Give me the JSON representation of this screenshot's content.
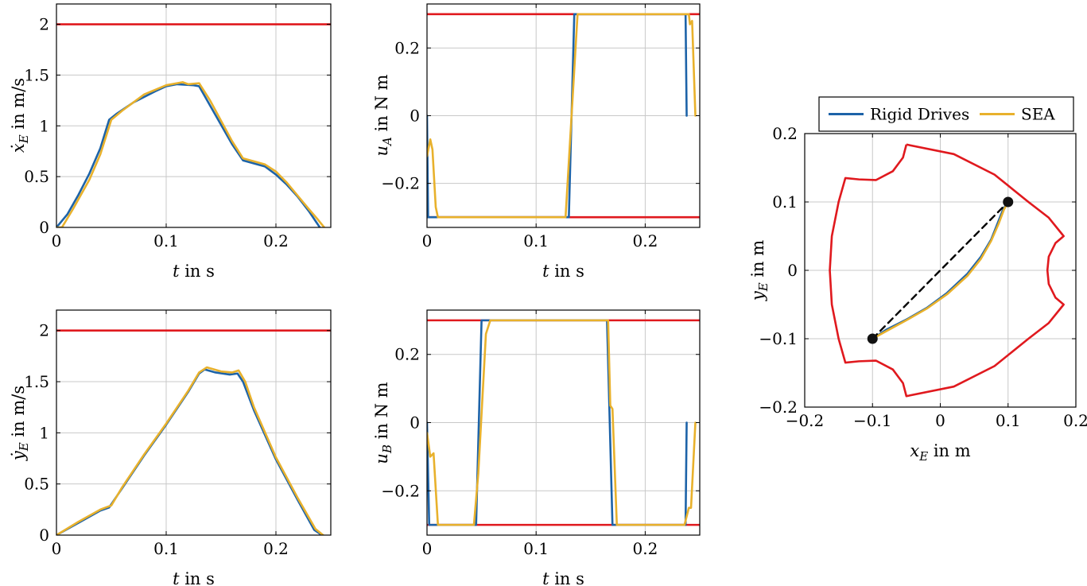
{
  "chart_data": [
    {
      "id": "vx",
      "type": "line",
      "xlabel_var": "t",
      "xlabel_unit": " in s",
      "ylabel_var": "ẋ",
      "ylabel_sub": "E",
      "ylabel_unit": " in m/s",
      "xlim": [
        0,
        0.25
      ],
      "ylim": [
        0,
        2.2
      ],
      "xticks": [
        0,
        0.1,
        0.2
      ],
      "xticklabels": [
        "0",
        "0.1",
        "0.2"
      ],
      "yticks": [
        0,
        0.5,
        1,
        1.5,
        2
      ],
      "yticklabels": [
        "0",
        "0.5",
        "1",
        "1.5",
        "2"
      ],
      "grid": true,
      "series": [
        {
          "color": "#e0191e",
          "points": [
            [
              0,
              2
            ],
            [
              0.25,
              2
            ]
          ]
        },
        {
          "color": "#1d63a8",
          "points": [
            [
              0,
              0
            ],
            [
              0.01,
              0.13
            ],
            [
              0.02,
              0.32
            ],
            [
              0.03,
              0.53
            ],
            [
              0.04,
              0.78
            ],
            [
              0.048,
              1.06
            ],
            [
              0.055,
              1.12
            ],
            [
              0.07,
              1.23
            ],
            [
              0.09,
              1.34
            ],
            [
              0.1,
              1.39
            ],
            [
              0.11,
              1.41
            ],
            [
              0.125,
              1.4
            ],
            [
              0.13,
              1.39
            ],
            [
              0.14,
              1.2
            ],
            [
              0.16,
              0.82
            ],
            [
              0.17,
              0.66
            ],
            [
              0.19,
              0.6
            ],
            [
              0.2,
              0.52
            ],
            [
              0.21,
              0.42
            ],
            [
              0.22,
              0.3
            ],
            [
              0.23,
              0.16
            ],
            [
              0.24,
              0
            ]
          ]
        },
        {
          "color": "#e8b12c",
          "points": [
            [
              0,
              0
            ],
            [
              0.005,
              0
            ],
            [
              0.015,
              0.18
            ],
            [
              0.03,
              0.47
            ],
            [
              0.04,
              0.72
            ],
            [
              0.05,
              1.06
            ],
            [
              0.06,
              1.15
            ],
            [
              0.08,
              1.31
            ],
            [
              0.1,
              1.4
            ],
            [
              0.115,
              1.43
            ],
            [
              0.12,
              1.41
            ],
            [
              0.13,
              1.42
            ],
            [
              0.14,
              1.25
            ],
            [
              0.16,
              0.85
            ],
            [
              0.17,
              0.68
            ],
            [
              0.19,
              0.62
            ],
            [
              0.2,
              0.55
            ],
            [
              0.21,
              0.44
            ],
            [
              0.22,
              0.31
            ],
            [
              0.23,
              0.18
            ],
            [
              0.238,
              0.08
            ],
            [
              0.244,
              0
            ]
          ]
        }
      ]
    },
    {
      "id": "uA",
      "type": "line",
      "xlabel_var": "t",
      "xlabel_unit": " in s",
      "ylabel_var": "u",
      "ylabel_sub": "A",
      "ylabel_unit": " in N m",
      "xlim": [
        0,
        0.25
      ],
      "ylim": [
        -0.33,
        0.33
      ],
      "xticks": [
        0,
        0.1,
        0.2
      ],
      "xticklabels": [
        "0",
        "0.1",
        "0.2"
      ],
      "yticks": [
        -0.2,
        0,
        0.2
      ],
      "yticklabels": [
        "−0.2",
        "0",
        "0.2"
      ],
      "grid": true,
      "series": [
        {
          "color": "#e0191e",
          "points": [
            [
              0,
              0.3
            ],
            [
              0.25,
              0.3
            ]
          ]
        },
        {
          "color": "#e0191e",
          "points": [
            [
              0,
              -0.3
            ],
            [
              0.25,
              -0.3
            ]
          ]
        },
        {
          "color": "#1d63a8",
          "points": [
            [
              0,
              0
            ],
            [
              0.001,
              -0.3
            ],
            [
              0.13,
              -0.3
            ],
            [
              0.135,
              0.3
            ],
            [
              0.237,
              0.3
            ],
            [
              0.238,
              0
            ]
          ]
        },
        {
          "color": "#e8b12c",
          "points": [
            [
              0,
              -0.12
            ],
            [
              0.003,
              -0.07
            ],
            [
              0.005,
              -0.1
            ],
            [
              0.008,
              -0.27
            ],
            [
              0.01,
              -0.3
            ],
            [
              0.127,
              -0.3
            ],
            [
              0.138,
              0.3
            ],
            [
              0.24,
              0.3
            ],
            [
              0.241,
              0.27
            ],
            [
              0.243,
              0.28
            ],
            [
              0.246,
              0
            ]
          ]
        }
      ]
    },
    {
      "id": "xy",
      "type": "line",
      "xlabel_var": "x",
      "xlabel_sub": "E",
      "xlabel_unit": " in m",
      "ylabel_var": "y",
      "ylabel_sub": "E",
      "ylabel_unit": " in m",
      "xlim": [
        -0.2,
        0.2
      ],
      "ylim": [
        -0.2,
        0.2
      ],
      "xticks": [
        -0.2,
        -0.1,
        0,
        0.1,
        0.2
      ],
      "xticklabels": [
        "−0.2",
        "−0.1",
        "0",
        "0.1",
        "0.2"
      ],
      "yticks": [
        -0.2,
        -0.1,
        0,
        0.1,
        0.2
      ],
      "yticklabels": [
        "−0.2",
        "−0.1",
        "0",
        "0.1",
        "0.2"
      ],
      "grid": true,
      "legend": "top",
      "series": [
        {
          "name": "Rigid Drives",
          "color": "#1d63a8",
          "points": [
            [
              -0.1,
              -0.1
            ],
            [
              -0.08,
              -0.087
            ],
            [
              -0.05,
              -0.072
            ],
            [
              -0.02,
              -0.055
            ],
            [
              0.01,
              -0.033
            ],
            [
              0.04,
              -0.005
            ],
            [
              0.06,
              0.02
            ],
            [
              0.075,
              0.045
            ],
            [
              0.085,
              0.07
            ],
            [
              0.093,
              0.09
            ],
            [
              0.1,
              0.1
            ]
          ]
        },
        {
          "name": "SEA",
          "color": "#e8b12c",
          "points": [
            [
              -0.1,
              -0.1
            ],
            [
              -0.078,
              -0.088
            ],
            [
              -0.05,
              -0.073
            ],
            [
              -0.02,
              -0.056
            ],
            [
              0.01,
              -0.035
            ],
            [
              0.04,
              -0.008
            ],
            [
              0.06,
              0.017
            ],
            [
              0.075,
              0.043
            ],
            [
              0.086,
              0.068
            ],
            [
              0.094,
              0.089
            ],
            [
              0.1,
              0.1
            ]
          ]
        },
        {
          "color": "#000000",
          "dash": true,
          "points": [
            [
              -0.1,
              -0.1
            ],
            [
              0.1,
              0.1
            ]
          ]
        }
      ],
      "workspace_boundary": {
        "color": "#e0191e",
        "points": [
          [
            -0.05,
            0.184
          ],
          [
            0.02,
            0.17
          ],
          [
            0.08,
            0.14
          ],
          [
            0.13,
            0.1
          ],
          [
            0.16,
            0.077
          ],
          [
            0.182,
            0.05
          ],
          [
            0.17,
            0.04
          ],
          [
            0.16,
            0.02
          ],
          [
            0.158,
            0
          ],
          [
            0.16,
            -0.02
          ],
          [
            0.17,
            -0.04
          ],
          [
            0.182,
            -0.05
          ],
          [
            0.16,
            -0.077
          ],
          [
            0.13,
            -0.1
          ],
          [
            0.08,
            -0.14
          ],
          [
            0.02,
            -0.17
          ],
          [
            -0.05,
            -0.184
          ],
          [
            -0.055,
            -0.165
          ],
          [
            -0.07,
            -0.145
          ],
          [
            -0.095,
            -0.132
          ],
          [
            -0.12,
            -0.133
          ],
          [
            -0.14,
            -0.135
          ],
          [
            -0.15,
            -0.1
          ],
          [
            -0.16,
            -0.05
          ],
          [
            -0.163,
            0
          ],
          [
            -0.16,
            0.05
          ],
          [
            -0.15,
            0.1
          ],
          [
            -0.14,
            0.135
          ],
          [
            -0.12,
            0.133
          ],
          [
            -0.095,
            0.132
          ],
          [
            -0.07,
            0.145
          ],
          [
            -0.055,
            0.165
          ],
          [
            -0.05,
            0.184
          ]
        ]
      },
      "markers": [
        [
          -0.1,
          -0.1
        ],
        [
          0.1,
          0.1
        ]
      ]
    },
    {
      "id": "vy",
      "type": "line",
      "xlabel_var": "t",
      "xlabel_unit": " in s",
      "ylabel_var": "ẏ",
      "ylabel_sub": "E",
      "ylabel_unit": " in m/s",
      "xlim": [
        0,
        0.25
      ],
      "ylim": [
        0,
        2.2
      ],
      "xticks": [
        0,
        0.1,
        0.2
      ],
      "xticklabels": [
        "0",
        "0.1",
        "0.2"
      ],
      "yticks": [
        0,
        0.5,
        1,
        1.5,
        2
      ],
      "yticklabels": [
        "0",
        "0.5",
        "1",
        "1.5",
        "2"
      ],
      "grid": true,
      "series": [
        {
          "color": "#e0191e",
          "points": [
            [
              0,
              2
            ],
            [
              0.25,
              2
            ]
          ]
        },
        {
          "color": "#1d63a8",
          "points": [
            [
              0,
              0
            ],
            [
              0.02,
              0.12
            ],
            [
              0.04,
              0.24
            ],
            [
              0.048,
              0.27
            ],
            [
              0.06,
              0.46
            ],
            [
              0.08,
              0.78
            ],
            [
              0.1,
              1.08
            ],
            [
              0.12,
              1.4
            ],
            [
              0.13,
              1.58
            ],
            [
              0.135,
              1.62
            ],
            [
              0.145,
              1.59
            ],
            [
              0.158,
              1.57
            ],
            [
              0.165,
              1.58
            ],
            [
              0.17,
              1.5
            ],
            [
              0.18,
              1.22
            ],
            [
              0.2,
              0.74
            ],
            [
              0.22,
              0.34
            ],
            [
              0.235,
              0.05
            ],
            [
              0.242,
              0
            ]
          ]
        },
        {
          "color": "#e8b12c",
          "points": [
            [
              0,
              0
            ],
            [
              0.02,
              0.13
            ],
            [
              0.04,
              0.25
            ],
            [
              0.05,
              0.29
            ],
            [
              0.06,
              0.47
            ],
            [
              0.08,
              0.79
            ],
            [
              0.1,
              1.09
            ],
            [
              0.12,
              1.41
            ],
            [
              0.13,
              1.59
            ],
            [
              0.137,
              1.64
            ],
            [
              0.15,
              1.6
            ],
            [
              0.16,
              1.59
            ],
            [
              0.166,
              1.61
            ],
            [
              0.172,
              1.5
            ],
            [
              0.18,
              1.25
            ],
            [
              0.2,
              0.76
            ],
            [
              0.22,
              0.36
            ],
            [
              0.236,
              0.06
            ],
            [
              0.243,
              0
            ]
          ]
        }
      ]
    },
    {
      "id": "uB",
      "type": "line",
      "xlabel_var": "t",
      "xlabel_unit": " in s",
      "ylabel_var": "u",
      "ylabel_sub": "B",
      "ylabel_unit": " in N m",
      "xlim": [
        0,
        0.25
      ],
      "ylim": [
        -0.33,
        0.33
      ],
      "xticks": [
        0,
        0.1,
        0.2
      ],
      "xticklabels": [
        "0",
        "0.1",
        "0.2"
      ],
      "yticks": [
        -0.2,
        0,
        0.2
      ],
      "yticklabels": [
        "−0.2",
        "0",
        "0.2"
      ],
      "grid": true,
      "series": [
        {
          "color": "#e0191e",
          "points": [
            [
              0,
              0.3
            ],
            [
              0.25,
              0.3
            ]
          ]
        },
        {
          "color": "#e0191e",
          "points": [
            [
              0,
              -0.3
            ],
            [
              0.25,
              -0.3
            ]
          ]
        },
        {
          "color": "#1d63a8",
          "points": [
            [
              0,
              0
            ],
            [
              0.002,
              -0.3
            ],
            [
              0.045,
              -0.3
            ],
            [
              0.05,
              0.3
            ],
            [
              0.165,
              0.3
            ],
            [
              0.17,
              -0.3
            ],
            [
              0.237,
              -0.3
            ],
            [
              0.238,
              0
            ]
          ]
        },
        {
          "color": "#e8b12c",
          "points": [
            [
              0,
              -0.03
            ],
            [
              0.003,
              -0.1
            ],
            [
              0.006,
              -0.09
            ],
            [
              0.01,
              -0.3
            ],
            [
              0.043,
              -0.3
            ],
            [
              0.047,
              -0.15
            ],
            [
              0.054,
              0.26
            ],
            [
              0.058,
              0.3
            ],
            [
              0.166,
              0.3
            ],
            [
              0.168,
              0.05
            ],
            [
              0.17,
              0.04
            ],
            [
              0.174,
              -0.3
            ],
            [
              0.236,
              -0.3
            ],
            [
              0.24,
              -0.25
            ],
            [
              0.242,
              -0.25
            ],
            [
              0.246,
              0
            ]
          ]
        }
      ]
    }
  ]
}
